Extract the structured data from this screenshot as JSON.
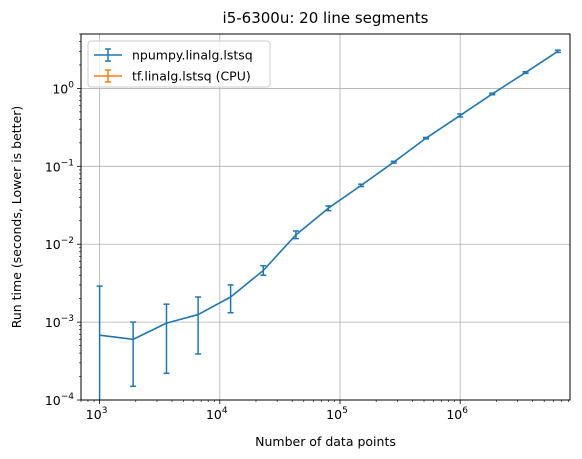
{
  "chart_data": {
    "type": "line",
    "title": "i5-6300u: 20 line segments",
    "xlabel": "Number of data points",
    "ylabel": "Run time (seconds, Lower is better)",
    "xscale": "log",
    "yscale": "log",
    "xlim": [
      700,
      8200000
    ],
    "ylim": [
      0.0001,
      5
    ],
    "grid": true,
    "legend_position": "top-left",
    "x_ticks": [
      {
        "value": 1000,
        "base": "10",
        "exp": "3"
      },
      {
        "value": 10000,
        "base": "10",
        "exp": "4"
      },
      {
        "value": 100000,
        "base": "10",
        "exp": "5"
      },
      {
        "value": 1000000,
        "base": "10",
        "exp": "6"
      }
    ],
    "y_ticks": [
      {
        "value": 0.0001,
        "base": "10",
        "exp": "−4"
      },
      {
        "value": 0.001,
        "base": "10",
        "exp": "−3"
      },
      {
        "value": 0.01,
        "base": "10",
        "exp": "−2"
      },
      {
        "value": 0.1,
        "base": "10",
        "exp": "−1"
      },
      {
        "value": 1,
        "base": "10",
        "exp": "0"
      }
    ],
    "series": [
      {
        "name": "npumpy.linalg.lstsq",
        "color": "#1f77b4",
        "x": [
          1000,
          1900,
          3600,
          6600,
          12300,
          23000,
          43000,
          80000,
          150000,
          280000,
          520000,
          1000000,
          1850000,
          3500000,
          6500000
        ],
        "y": [
          0.00068,
          0.0006,
          0.00097,
          0.00125,
          0.0021,
          0.0046,
          0.0132,
          0.029,
          0.057,
          0.113,
          0.23,
          0.45,
          0.85,
          1.6,
          3.0
        ],
        "err_low": [
          0.0001,
          0.00015,
          0.00022,
          0.00039,
          0.00132,
          0.004,
          0.0118,
          0.027,
          0.055,
          0.11,
          0.225,
          0.43,
          0.83,
          1.56,
          2.9
        ],
        "err_high": [
          0.0029,
          0.001,
          0.0017,
          0.0021,
          0.003,
          0.0053,
          0.0148,
          0.031,
          0.059,
          0.116,
          0.235,
          0.47,
          0.87,
          1.64,
          3.1
        ]
      },
      {
        "name": "tf.linalg.lstsq (CPU)",
        "color": "#ff7f0e",
        "x": [],
        "y": [],
        "err_low": [],
        "err_high": []
      }
    ]
  }
}
